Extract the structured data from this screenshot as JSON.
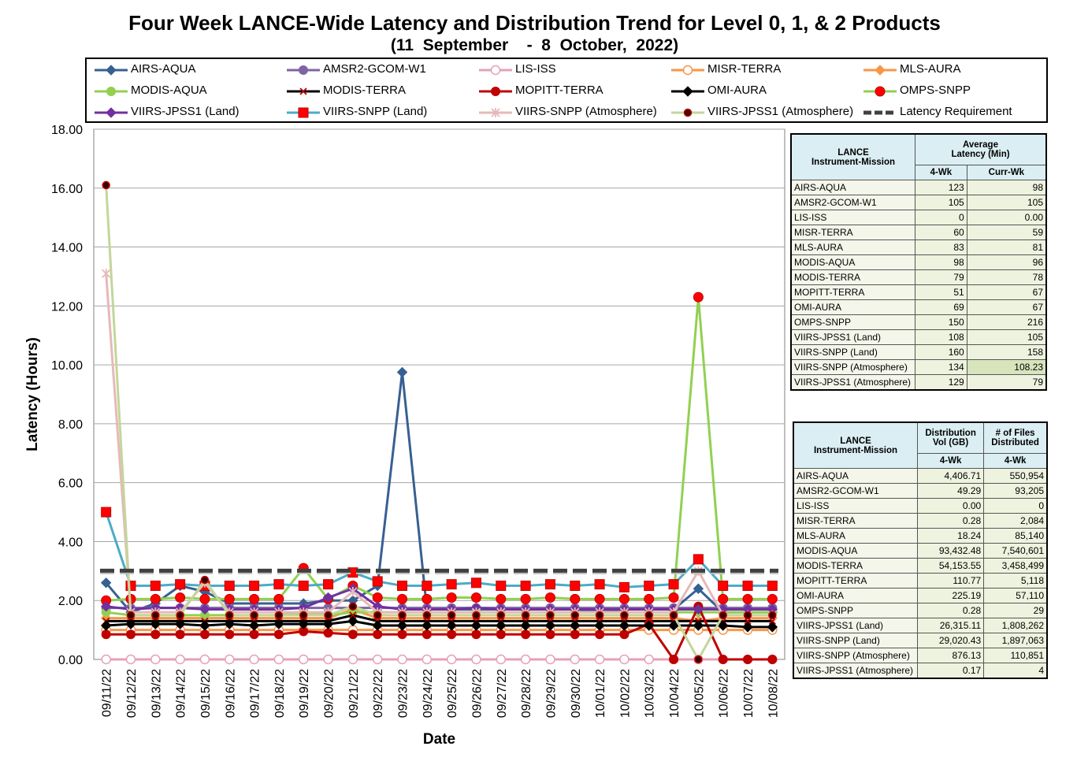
{
  "chart_data": {
    "type": "line",
    "title": "Four Week LANCE-Wide Latency and Distribution Trend for Level 0, 1, & 2 Products",
    "subtitle": "(11  September    -  8  October,  2022)",
    "xlabel": "Date",
    "ylabel": "Latency (Hours)",
    "ylim": [
      0,
      18
    ],
    "yticks": [
      "0.00",
      "2.00",
      "4.00",
      "6.00",
      "8.00",
      "10.00",
      "12.00",
      "14.00",
      "16.00",
      "18.00"
    ],
    "grid": true,
    "legend_position": "top",
    "categories": [
      "09/11/22",
      "09/12/22",
      "09/13/22",
      "09/14/22",
      "09/15/22",
      "09/16/22",
      "09/17/22",
      "09/18/22",
      "09/19/22",
      "09/20/22",
      "09/21/22",
      "09/22/22",
      "09/23/22",
      "09/24/22",
      "09/25/22",
      "09/26/22",
      "09/27/22",
      "09/28/22",
      "09/29/22",
      "09/30/22",
      "10/01/22",
      "10/02/22",
      "10/03/22",
      "10/04/22",
      "10/05/22",
      "10/06/22",
      "10/07/22",
      "10/08/22"
    ],
    "series": [
      {
        "name": "AIRS-AQUA",
        "color": "#376092",
        "marker": "diamond",
        "values": [
          2.6,
          1.6,
          1.9,
          2.5,
          2.3,
          1.9,
          1.9,
          1.9,
          1.9,
          2.0,
          2.0,
          2.5,
          9.75,
          1.7,
          1.7,
          1.7,
          1.7,
          1.7,
          1.7,
          1.7,
          1.6,
          1.7,
          1.7,
          1.7,
          2.4,
          1.6,
          1.6,
          1.6
        ]
      },
      {
        "name": "AMSR2-GCOM-W1",
        "color": "#8064a2",
        "marker": "circle",
        "values": [
          1.75,
          1.75,
          1.75,
          1.75,
          1.75,
          1.75,
          1.75,
          1.75,
          1.75,
          1.75,
          1.75,
          1.75,
          1.75,
          1.75,
          1.75,
          1.75,
          1.75,
          1.75,
          1.75,
          1.75,
          1.75,
          1.75,
          1.75,
          1.75,
          1.75,
          1.75,
          1.75,
          1.75
        ]
      },
      {
        "name": "LIS-ISS",
        "color": "#e6a0b4",
        "marker": "open-circle",
        "values": [
          0,
          0,
          0,
          0,
          0,
          0,
          0,
          0,
          0,
          0,
          0,
          0,
          0,
          0,
          0,
          0,
          0,
          0,
          0,
          0,
          0,
          0,
          0,
          0,
          0,
          0,
          0,
          0
        ]
      },
      {
        "name": "MISR-TERRA",
        "color": "#f79646",
        "marker": "open-circle",
        "values": [
          1.0,
          1.0,
          1.0,
          1.0,
          1.0,
          1.0,
          1.0,
          1.0,
          1.0,
          1.0,
          1.0,
          1.0,
          1.0,
          1.0,
          1.0,
          1.0,
          1.0,
          1.0,
          1.0,
          1.0,
          1.0,
          1.0,
          1.0,
          1.0,
          1.0,
          1.0,
          1.0,
          1.0
        ]
      },
      {
        "name": "MLS-AURA",
        "color": "#f79646",
        "marker": "diamond",
        "values": [
          1.4,
          1.4,
          1.4,
          1.4,
          1.4,
          1.4,
          1.4,
          1.4,
          1.4,
          1.4,
          1.7,
          1.4,
          1.4,
          1.4,
          1.4,
          1.4,
          1.4,
          1.4,
          1.4,
          1.4,
          1.4,
          1.4,
          1.4,
          1.4,
          1.3,
          1.4,
          1.4,
          1.4
        ]
      },
      {
        "name": "MODIS-AQUA",
        "color": "#92d050",
        "marker": "circle",
        "values": [
          1.6,
          1.5,
          1.5,
          1.5,
          1.5,
          1.5,
          1.5,
          1.5,
          1.6,
          1.5,
          1.6,
          1.6,
          1.6,
          1.6,
          1.6,
          1.6,
          1.6,
          1.6,
          1.6,
          1.6,
          1.6,
          1.6,
          1.6,
          1.6,
          1.6,
          1.6,
          1.6,
          1.6
        ]
      },
      {
        "name": "MODIS-TERRA",
        "color": "#000000",
        "marker": "cross",
        "values": [
          1.3,
          1.3,
          1.3,
          1.3,
          1.3,
          1.3,
          1.3,
          1.3,
          1.3,
          1.3,
          1.5,
          1.3,
          1.3,
          1.3,
          1.3,
          1.3,
          1.3,
          1.3,
          1.3,
          1.3,
          1.3,
          1.3,
          1.3,
          1.3,
          1.3,
          1.3,
          1.3,
          1.3
        ]
      },
      {
        "name": "MOPITT-TERRA",
        "color": "#c00000",
        "marker": "circle",
        "values": [
          0.85,
          0.85,
          0.85,
          0.85,
          0.85,
          0.85,
          0.85,
          0.85,
          0.95,
          0.9,
          0.85,
          0.85,
          0.85,
          0.85,
          0.85,
          0.85,
          0.85,
          0.85,
          0.85,
          0.85,
          0.85,
          0.85,
          1.2,
          0,
          1.8,
          0,
          0,
          0
        ]
      },
      {
        "name": "OMI-AURA",
        "color": "#000000",
        "marker": "diamond",
        "values": [
          1.15,
          1.2,
          1.2,
          1.2,
          1.15,
          1.2,
          1.15,
          1.2,
          1.2,
          1.2,
          1.3,
          1.15,
          1.15,
          1.15,
          1.15,
          1.15,
          1.15,
          1.15,
          1.15,
          1.15,
          1.15,
          1.15,
          1.15,
          1.15,
          1.15,
          1.15,
          1.1,
          1.1
        ]
      },
      {
        "name": "OMPS-SNPP",
        "color": "#92d050",
        "marker": "red-circle",
        "values": [
          2.0,
          2.05,
          2.05,
          2.1,
          2.05,
          2.05,
          2.05,
          2.05,
          3.1,
          2.05,
          2.5,
          2.1,
          2.05,
          2.05,
          2.1,
          2.1,
          2.05,
          2.05,
          2.1,
          2.05,
          2.05,
          2.05,
          2.05,
          2.1,
          12.3,
          2.05,
          2.05,
          2.05
        ]
      },
      {
        "name": "VIIRS-JPSS1 (Land)",
        "color": "#7030a0",
        "marker": "diamond",
        "values": [
          1.8,
          1.7,
          1.75,
          1.75,
          1.7,
          1.7,
          1.7,
          1.7,
          1.75,
          2.1,
          2.4,
          1.8,
          1.7,
          1.7,
          1.7,
          1.75,
          1.7,
          1.7,
          1.7,
          1.7,
          1.7,
          1.7,
          1.7,
          1.7,
          1.7,
          1.7,
          1.7,
          1.7
        ]
      },
      {
        "name": "VIIRS-SNPP (Land)",
        "color": "#4bacc6",
        "marker": "red-square",
        "values": [
          5.0,
          2.5,
          2.5,
          2.55,
          2.5,
          2.5,
          2.5,
          2.55,
          2.5,
          2.55,
          2.95,
          2.65,
          2.5,
          2.5,
          2.55,
          2.6,
          2.5,
          2.5,
          2.55,
          2.5,
          2.55,
          2.45,
          2.5,
          2.55,
          3.4,
          2.5,
          2.5,
          2.5
        ]
      },
      {
        "name": "VIIRS-SNPP (Atmosphere)",
        "color": "#e6b9b8",
        "marker": "star",
        "values": [
          13.1,
          1.6,
          1.6,
          1.6,
          2.6,
          1.6,
          1.6,
          1.6,
          1.6,
          1.6,
          2.3,
          1.6,
          1.6,
          1.6,
          1.6,
          1.6,
          1.6,
          1.6,
          1.6,
          1.6,
          1.6,
          1.6,
          1.6,
          1.6,
          3.0,
          1.5,
          1.5,
          1.5
        ]
      },
      {
        "name": "VIIRS-JPSS1 (Atmosphere)",
        "color": "#c3d69b",
        "marker": "dark-circle",
        "values": [
          16.1,
          1.5,
          1.5,
          1.5,
          2.7,
          1.5,
          1.5,
          1.5,
          1.5,
          1.5,
          1.8,
          1.5,
          1.5,
          1.5,
          1.5,
          1.5,
          1.5,
          1.5,
          1.5,
          1.5,
          1.5,
          1.5,
          1.5,
          1.5,
          0,
          1.5,
          1.5,
          1.5
        ]
      },
      {
        "name": "Latency Requirement",
        "color": "#1f1f1f",
        "marker": "dash",
        "values": [
          3,
          3,
          3,
          3,
          3,
          3,
          3,
          3,
          3,
          3,
          3,
          3,
          3,
          3,
          3,
          3,
          3,
          3,
          3,
          3,
          3,
          3,
          3,
          3,
          3,
          3,
          3,
          3
        ]
      }
    ]
  },
  "latency_table": {
    "header_col1": "LANCE\nInstrument-Mission",
    "header_col2": "Average\nLatency (Min)",
    "sub_4wk": "4-Wk",
    "sub_curr": "Curr-Wk",
    "rows": [
      {
        "name": "AIRS-AQUA",
        "wk4": "123",
        "curr": "98"
      },
      {
        "name": "AMSR2-GCOM-W1",
        "wk4": "105",
        "curr": "105"
      },
      {
        "name": "LIS-ISS",
        "wk4": "0",
        "curr": "0.00"
      },
      {
        "name": "MISR-TERRA",
        "wk4": "60",
        "curr": "59"
      },
      {
        "name": "MLS-AURA",
        "wk4": "83",
        "curr": "81"
      },
      {
        "name": "MODIS-AQUA",
        "wk4": "98",
        "curr": "96"
      },
      {
        "name": "MODIS-TERRA",
        "wk4": "79",
        "curr": "78"
      },
      {
        "name": "MOPITT-TERRA",
        "wk4": "51",
        "curr": "67"
      },
      {
        "name": "OMI-AURA",
        "wk4": "69",
        "curr": "67"
      },
      {
        "name": "OMPS-SNPP",
        "wk4": "150",
        "curr": "216"
      },
      {
        "name": "VIIRS-JPSS1 (Land)",
        "wk4": "108",
        "curr": "105"
      },
      {
        "name": "VIIRS-SNPP (Land)",
        "wk4": "160",
        "curr": "158"
      },
      {
        "name": "VIIRS-SNPP (Atmosphere)",
        "wk4": "134",
        "curr": "108.23"
      },
      {
        "name": "VIIRS-JPSS1 (Atmosphere)",
        "wk4": "129",
        "curr": "79"
      }
    ]
  },
  "distribution_table": {
    "header_col1": "LANCE\nInstrument-Mission",
    "header_col2": "Distribution\nVol (GB)",
    "header_col3": "# of Files\nDistributed",
    "sub_vol": "4-Wk",
    "sub_files": "4-Wk",
    "rows": [
      {
        "name": "AIRS-AQUA",
        "vol": "4,406.71",
        "files": "550,954"
      },
      {
        "name": "AMSR2-GCOM-W1",
        "vol": "49.29",
        "files": "93,205"
      },
      {
        "name": "LIS-ISS",
        "vol": "0.00",
        "files": "0"
      },
      {
        "name": "MISR-TERRA",
        "vol": "0.28",
        "files": "2,084"
      },
      {
        "name": "MLS-AURA",
        "vol": "18.24",
        "files": "85,140"
      },
      {
        "name": "MODIS-AQUA",
        "vol": "93,432.48",
        "files": "7,540,601"
      },
      {
        "name": "MODIS-TERRA",
        "vol": "54,153.55",
        "files": "3,458,499"
      },
      {
        "name": "MOPITT-TERRA",
        "vol": "110.77",
        "files": "5,118"
      },
      {
        "name": "OMI-AURA",
        "vol": "225.19",
        "files": "57,110"
      },
      {
        "name": "OMPS-SNPP",
        "vol": "0.28",
        "files": "29"
      },
      {
        "name": "VIIRS-JPSS1 (Land)",
        "vol": "26,315.11",
        "files": "1,808,262"
      },
      {
        "name": "VIIRS-SNPP (Land)",
        "vol": "29,020.43",
        "files": "1,897,063"
      },
      {
        "name": "VIIRS-SNPP (Atmosphere)",
        "vol": "876.13",
        "files": "110,851"
      },
      {
        "name": "VIIRS-JPSS1 (Atmosphere)",
        "vol": "0.17",
        "files": "4"
      }
    ]
  }
}
